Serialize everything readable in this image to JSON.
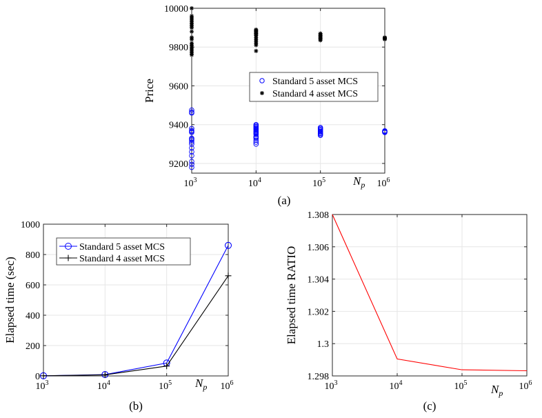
{
  "chart_data": [
    {
      "id": "a",
      "type": "scatter",
      "caption": "(a)",
      "xscale": "log",
      "xlim": [
        1000,
        1000000
      ],
      "ylim": [
        9150,
        10000
      ],
      "xticks": [
        1000,
        10000,
        100000,
        1000000
      ],
      "xtick_labels": [
        {
          "base": "10",
          "exp": "3"
        },
        {
          "base": "10",
          "exp": "4"
        },
        {
          "base": "10",
          "exp": "5"
        },
        {
          "base": "10",
          "exp": "6"
        }
      ],
      "yticks": [
        9200,
        9400,
        9600,
        9800,
        10000
      ],
      "ytick_labels": [
        "9200",
        "9400",
        "9600",
        "9800",
        "10000"
      ],
      "ylabel": "Price",
      "xlabel": {
        "main": "N",
        "sub": "p"
      },
      "grid": true,
      "legend_position": "center-right",
      "series": [
        {
          "name": "Standard 5 asset MCS",
          "color": "#0000ff",
          "marker": "circle",
          "points": [
            {
              "x": 1000,
              "ys": [
                9180,
                9195,
                9210,
                9240,
                9260,
                9280,
                9300,
                9310,
                9320,
                9325,
                9330,
                9360,
                9365,
                9370,
                9380,
                9460,
                9465,
                9475
              ]
            },
            {
              "x": 10000,
              "ys": [
                9300,
                9310,
                9320,
                9330,
                9335,
                9340,
                9350,
                9355,
                9360,
                9365,
                9370,
                9375,
                9380,
                9385,
                9390,
                9395,
                9400
              ]
            },
            {
              "x": 100000,
              "ys": [
                9345,
                9350,
                9355,
                9360,
                9365,
                9370,
                9375,
                9380,
                9385
              ]
            },
            {
              "x": 1000000,
              "ys": [
                9360,
                9362,
                9364,
                9366,
                9368
              ]
            }
          ]
        },
        {
          "name": "Standard 4 asset MCS",
          "color": "#000000",
          "marker": "star",
          "points": [
            {
              "x": 1000,
              "ys": [
                9760,
                9770,
                9780,
                9790,
                9800,
                9810,
                9820,
                9840,
                9850,
                9880,
                9900,
                9910,
                9920,
                9930,
                9940,
                9950,
                9960,
                10000
              ]
            },
            {
              "x": 10000,
              "ys": [
                9780,
                9810,
                9820,
                9830,
                9840,
                9850,
                9860,
                9865,
                9870,
                9875,
                9880,
                9885,
                9890
              ]
            },
            {
              "x": 100000,
              "ys": [
                9835,
                9840,
                9845,
                9850,
                9855,
                9860,
                9865,
                9870
              ]
            },
            {
              "x": 1000000,
              "ys": [
                9840,
                9843,
                9845,
                9847,
                9850
              ]
            }
          ]
        }
      ]
    },
    {
      "id": "b",
      "type": "line",
      "caption": "(b)",
      "xscale": "log",
      "xlim": [
        1000,
        1000000
      ],
      "ylim": [
        0,
        1000
      ],
      "xticks": [
        1000,
        10000,
        100000,
        1000000
      ],
      "xtick_labels": [
        {
          "base": "10",
          "exp": "3"
        },
        {
          "base": "10",
          "exp": "4"
        },
        {
          "base": "10",
          "exp": "5"
        },
        {
          "base": "10",
          "exp": "6"
        }
      ],
      "yticks": [
        0,
        200,
        400,
        600,
        800,
        1000
      ],
      "ytick_labels": [
        "0",
        "200",
        "400",
        "600",
        "800",
        "1000"
      ],
      "ylabel": "Elapsed time (sec)",
      "xlabel": {
        "main": "N",
        "sub": "p"
      },
      "grid": true,
      "legend_position": "top-left",
      "x": [
        1000,
        10000,
        100000,
        1000000
      ],
      "series": [
        {
          "name": "Standard 5 asset MCS",
          "color": "#0000ff",
          "marker": "circle",
          "values": [
            1,
            9,
            85,
            860
          ]
        },
        {
          "name": "Standard 4 asset MCS",
          "color": "#000000",
          "marker": "plus",
          "values": [
            1,
            7,
            65,
            660
          ]
        }
      ]
    },
    {
      "id": "c",
      "type": "line",
      "caption": "(c)",
      "xscale": "log",
      "xlim": [
        1000,
        1000000
      ],
      "ylim": [
        1.298,
        1.308
      ],
      "xticks": [
        1000,
        10000,
        100000,
        1000000
      ],
      "xtick_labels": [
        {
          "base": "10",
          "exp": "3"
        },
        {
          "base": "10",
          "exp": "4"
        },
        {
          "base": "10",
          "exp": "5"
        },
        {
          "base": "10",
          "exp": "6"
        }
      ],
      "yticks": [
        1.298,
        1.3,
        1.302,
        1.304,
        1.306,
        1.308
      ],
      "ytick_labels": [
        "1.298",
        "1.3",
        "1.302",
        "1.304",
        "1.306",
        "1.308"
      ],
      "ylabel": "Elapsed time RATIO",
      "xlabel": {
        "main": "N",
        "sub": "p"
      },
      "grid": true,
      "x": [
        1000,
        10000,
        100000,
        1000000
      ],
      "series": [
        {
          "name": "ratio",
          "color": "#ff0000",
          "marker": "none",
          "values": [
            1.308,
            1.29905,
            1.29838,
            1.29832
          ]
        }
      ]
    }
  ]
}
